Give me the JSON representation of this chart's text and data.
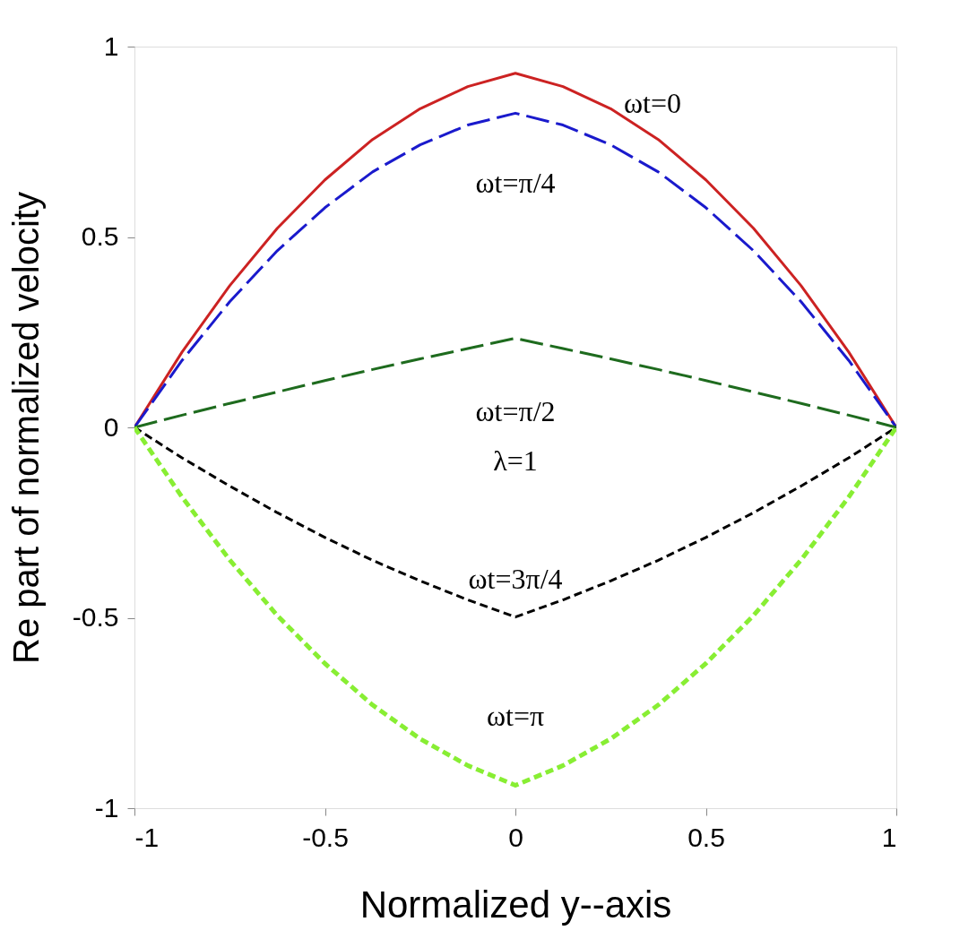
{
  "chart_data": {
    "type": "line",
    "xlabel": "Normalized y--axis",
    "ylabel": "Re part of normalized velocity",
    "x": [
      -1,
      -0.875,
      -0.75,
      -0.625,
      -0.5,
      -0.375,
      -0.25,
      -0.125,
      0,
      0.125,
      0.25,
      0.375,
      0.5,
      0.625,
      0.75,
      0.875,
      1
    ],
    "series": [
      {
        "color": "#cc2222",
        "line_style": "solid",
        "values": [
          0,
          0.198,
          0.372,
          0.523,
          0.65,
          0.756,
          0.837,
          0.895,
          0.93,
          0.895,
          0.837,
          0.756,
          0.65,
          0.523,
          0.372,
          0.198,
          0
        ]
      },
      {
        "color": "#1a1acc",
        "line_style": "dashed",
        "values": [
          0,
          0.176,
          0.33,
          0.464,
          0.577,
          0.671,
          0.742,
          0.794,
          0.825,
          0.794,
          0.742,
          0.671,
          0.577,
          0.464,
          0.33,
          0.176,
          0
        ]
      },
      {
        "color": "#1e6b1e",
        "line_style": "dashed",
        "values": [
          0,
          0.032,
          0.063,
          0.093,
          0.123,
          0.152,
          0.18,
          0.207,
          0.234,
          0.207,
          0.18,
          0.152,
          0.123,
          0.093,
          0.063,
          0.032,
          0
        ]
      },
      {
        "color": "#000000",
        "line_style": "dotted",
        "values": [
          0,
          -0.08,
          -0.154,
          -0.224,
          -0.289,
          -0.349,
          -0.403,
          -0.453,
          -0.498,
          -0.453,
          -0.403,
          -0.349,
          -0.289,
          -0.224,
          -0.154,
          -0.08,
          0
        ]
      },
      {
        "color": "#88ee33",
        "line_style": "dotted",
        "values": [
          0,
          -0.183,
          -0.348,
          -0.494,
          -0.62,
          -0.729,
          -0.818,
          -0.888,
          -0.94,
          -0.888,
          -0.818,
          -0.729,
          -0.62,
          -0.494,
          -0.348,
          -0.183,
          0
        ]
      }
    ],
    "xlim": [
      -1,
      1
    ],
    "ylim": [
      -1,
      1
    ],
    "xticks": [
      -1,
      -0.5,
      0,
      0.5,
      1
    ],
    "yticks": [
      -1,
      -0.5,
      0,
      0.5,
      1
    ],
    "grid": false,
    "annotations": [
      "ωt=0",
      "ωt=π/4",
      "ωt=π/2",
      "λ=1",
      "ωt=3π/4",
      "ωt=π"
    ]
  }
}
